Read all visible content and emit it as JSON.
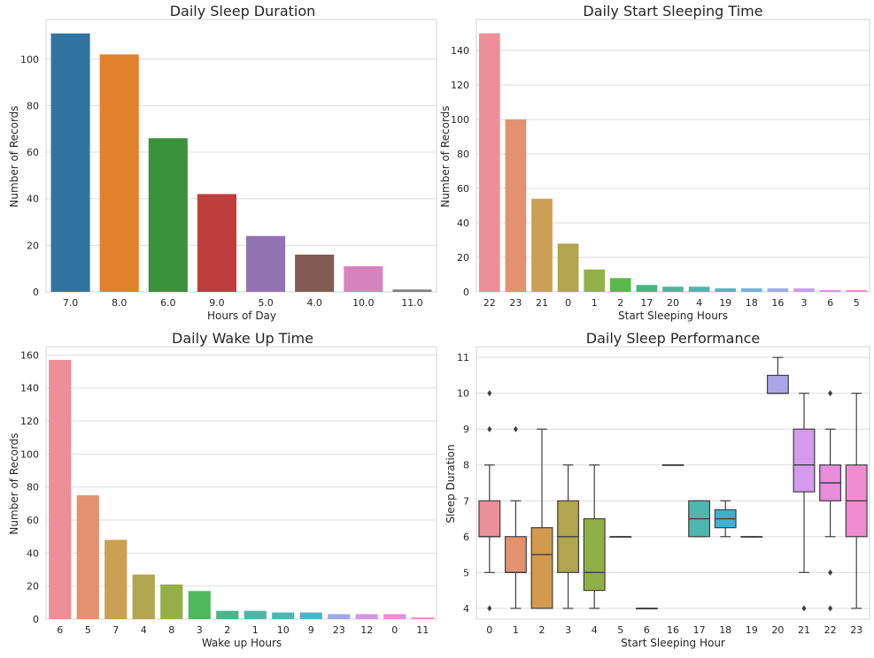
{
  "chart_data": [
    {
      "type": "bar",
      "title": "Daily Sleep Duration",
      "xlabel": "Hours of Day",
      "ylabel": "Number of Records",
      "categories": [
        "7.0",
        "8.0",
        "6.0",
        "9.0",
        "5.0",
        "4.0",
        "10.0",
        "11.0"
      ],
      "values": [
        111,
        102,
        66,
        42,
        24,
        16,
        11,
        1
      ],
      "colors": [
        "#3274a1",
        "#e1812c",
        "#3a923a",
        "#c03d3e",
        "#9372b2",
        "#845b53",
        "#d684bd",
        "#7f7f7f"
      ],
      "ylim": [
        0,
        117
      ],
      "yticks": [
        0,
        20,
        40,
        60,
        80,
        100
      ],
      "grid": true
    },
    {
      "type": "bar",
      "title": "Daily Start Sleeping Time",
      "xlabel": "Start Sleeping Hours",
      "ylabel": "Number of Records",
      "categories": [
        "22",
        "23",
        "21",
        "0",
        "1",
        "2",
        "17",
        "20",
        "4",
        "19",
        "18",
        "16",
        "3",
        "6",
        "5"
      ],
      "values": [
        150,
        100,
        54,
        28,
        13,
        8,
        4,
        3,
        3,
        2,
        2,
        2,
        2,
        1,
        1
      ],
      "colors": [
        "#ed8f98",
        "#e2926f",
        "#c9a054",
        "#b1a54e",
        "#95b046",
        "#5bba47",
        "#49b57e",
        "#4eb79b",
        "#4fb6ae",
        "#52b3c4",
        "#6db2de",
        "#9fabe6",
        "#c89ee9",
        "#e08de6",
        "#f08bcd"
      ],
      "ylim": [
        0,
        158
      ],
      "yticks": [
        0,
        20,
        40,
        60,
        80,
        100,
        120,
        140
      ],
      "grid": true
    },
    {
      "type": "bar",
      "title": "Daily Wake Up Time",
      "xlabel": "Wake up Hours",
      "ylabel": "Number of Records",
      "categories": [
        "6",
        "5",
        "7",
        "4",
        "8",
        "3",
        "2",
        "1",
        "10",
        "9",
        "23",
        "12",
        "0",
        "11"
      ],
      "values": [
        157,
        75,
        48,
        27,
        21,
        17,
        5,
        5,
        4,
        4,
        3,
        3,
        3,
        1
      ],
      "colors": [
        "#ed8f98",
        "#e2926f",
        "#c9a054",
        "#b1a54e",
        "#95b046",
        "#4fb85d",
        "#49b68a",
        "#4eb7a3",
        "#4fb5b7",
        "#51b2cc",
        "#9fa9e8",
        "#d097e9",
        "#e68ddb",
        "#f08bbe"
      ],
      "ylim": [
        0,
        165
      ],
      "yticks": [
        0,
        20,
        40,
        60,
        80,
        100,
        120,
        140,
        160
      ],
      "grid": true
    },
    {
      "type": "box",
      "title": "Daily Sleep Performance",
      "xlabel": "Start Sleeping Hour",
      "ylabel": "Sleep Duration",
      "categories": [
        "0",
        "1",
        "2",
        "3",
        "4",
        "5",
        "6",
        "16",
        "17",
        "18",
        "19",
        "20",
        "21",
        "22",
        "23"
      ],
      "ylim": [
        3.7,
        11.3
      ],
      "yticks": [
        4,
        5,
        6,
        7,
        8,
        9,
        10,
        11
      ],
      "grid": true,
      "boxes": [
        {
          "cat": "0",
          "whislo": 5,
          "q1": 6,
          "med": 6,
          "q3": 7,
          "whishi": 8,
          "fliers": [
            4,
            9,
            10
          ],
          "color": "#ed8f98"
        },
        {
          "cat": "1",
          "whislo": 4,
          "q1": 5,
          "med": 5,
          "q3": 6,
          "whishi": 7,
          "fliers": [
            9
          ],
          "color": "#e2926f"
        },
        {
          "cat": "2",
          "whislo": 4,
          "q1": 4,
          "med": 5.5,
          "q3": 6.25,
          "whishi": 9,
          "fliers": [],
          "color": "#d19a4e"
        },
        {
          "cat": "3",
          "whislo": 4,
          "q1": 5,
          "med": 6,
          "q3": 7,
          "whishi": 8,
          "fliers": [],
          "color": "#b1a54e"
        },
        {
          "cat": "4",
          "whislo": 4,
          "q1": 4.5,
          "med": 5,
          "q3": 6.5,
          "whishi": 8,
          "fliers": [],
          "color": "#8fb046"
        },
        {
          "cat": "5",
          "whislo": 6,
          "q1": 6,
          "med": 6,
          "q3": 6,
          "whishi": 6,
          "fliers": [],
          "color": "#5bba47"
        },
        {
          "cat": "6",
          "whislo": 4,
          "q1": 4,
          "med": 4,
          "q3": 4,
          "whishi": 4,
          "fliers": [],
          "color": "#49b57e"
        },
        {
          "cat": "16",
          "whislo": 8,
          "q1": 8,
          "med": 8,
          "q3": 8,
          "whishi": 8,
          "fliers": [],
          "color": "#4eb79b"
        },
        {
          "cat": "17",
          "whislo": 6,
          "q1": 6,
          "med": 6.5,
          "q3": 7,
          "whishi": 7,
          "fliers": [],
          "color": "#4fb6ae"
        },
        {
          "cat": "18",
          "whislo": 6,
          "q1": 6.25,
          "med": 6.5,
          "q3": 6.75,
          "whishi": 7,
          "fliers": [],
          "color": "#3fafd0"
        },
        {
          "cat": "19",
          "whislo": 6,
          "q1": 6,
          "med": 6,
          "q3": 6,
          "whishi": 6,
          "fliers": [],
          "color": "#6db2de"
        },
        {
          "cat": "20",
          "whislo": 10,
          "q1": 10,
          "med": 10,
          "q3": 10.5,
          "whishi": 11,
          "fliers": [],
          "color": "#a9a6e8"
        },
        {
          "cat": "21",
          "whislo": 5,
          "q1": 7.25,
          "med": 8,
          "q3": 9,
          "whishi": 10,
          "fliers": [
            4
          ],
          "color": "#d59bea"
        },
        {
          "cat": "22",
          "whislo": 6,
          "q1": 7,
          "med": 7.5,
          "q3": 8,
          "whishi": 9,
          "fliers": [
            4,
            5,
            10
          ],
          "color": "#e68ddb"
        },
        {
          "cat": "23",
          "whislo": 4,
          "q1": 6,
          "med": 7,
          "q3": 8,
          "whishi": 10,
          "fliers": [],
          "color": "#f08bcd"
        }
      ]
    }
  ]
}
